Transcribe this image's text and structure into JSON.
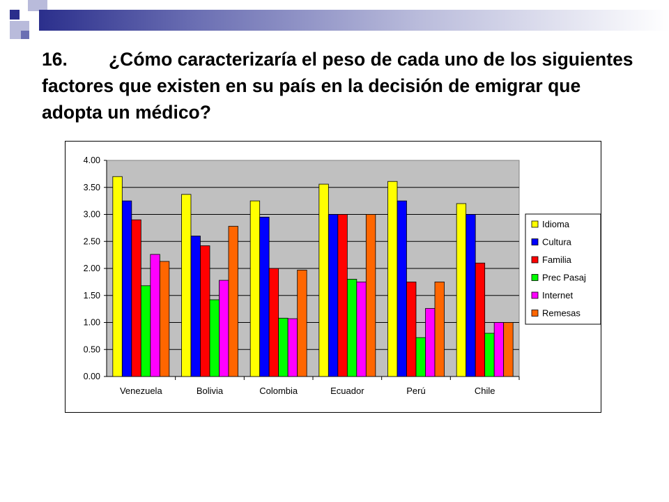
{
  "slide": {
    "number": "16.",
    "title": "¿Cómo caracterizaría el peso de cada uno de los siguientes factores que existen en su país en la decisión de emigrar que adopta un médico?"
  },
  "colors": {
    "deco_dark": "#2b2f8c",
    "deco_light": "#b9bbdb",
    "plot_background": "#c0c0c0"
  },
  "chart_data": {
    "type": "bar",
    "title": "",
    "xlabel": "",
    "ylabel": "",
    "categories": [
      "Venezuela",
      "Bolivia",
      "Colombia",
      "Ecuador",
      "Perú",
      "Chile"
    ],
    "ylim": [
      0,
      4
    ],
    "yticks": [
      "0.00",
      "0.50",
      "1.00",
      "1.50",
      "2.00",
      "2.50",
      "3.00",
      "3.50",
      "4.00"
    ],
    "grid": true,
    "legend_position": "right",
    "series": [
      {
        "name": "Idioma",
        "color": "#ffff00",
        "values": [
          3.7,
          3.37,
          3.25,
          3.56,
          3.61,
          3.2
        ]
      },
      {
        "name": "Cultura",
        "color": "#0000ff",
        "values": [
          3.25,
          2.6,
          2.95,
          3.0,
          3.25,
          3.0
        ]
      },
      {
        "name": "Familia",
        "color": "#ff0000",
        "values": [
          2.9,
          2.42,
          2.0,
          3.0,
          1.75,
          2.1
        ]
      },
      {
        "name": "Prec Pasaj",
        "color": "#00ff00",
        "values": [
          1.68,
          1.42,
          1.08,
          1.8,
          0.72,
          0.8
        ]
      },
      {
        "name": "Internet",
        "color": "#ff00ff",
        "values": [
          2.26,
          1.78,
          1.07,
          1.75,
          1.26,
          1.0
        ]
      },
      {
        "name": "Remesas",
        "color": "#ff6600",
        "values": [
          2.13,
          2.78,
          1.97,
          3.0,
          1.75,
          1.0
        ]
      }
    ]
  }
}
